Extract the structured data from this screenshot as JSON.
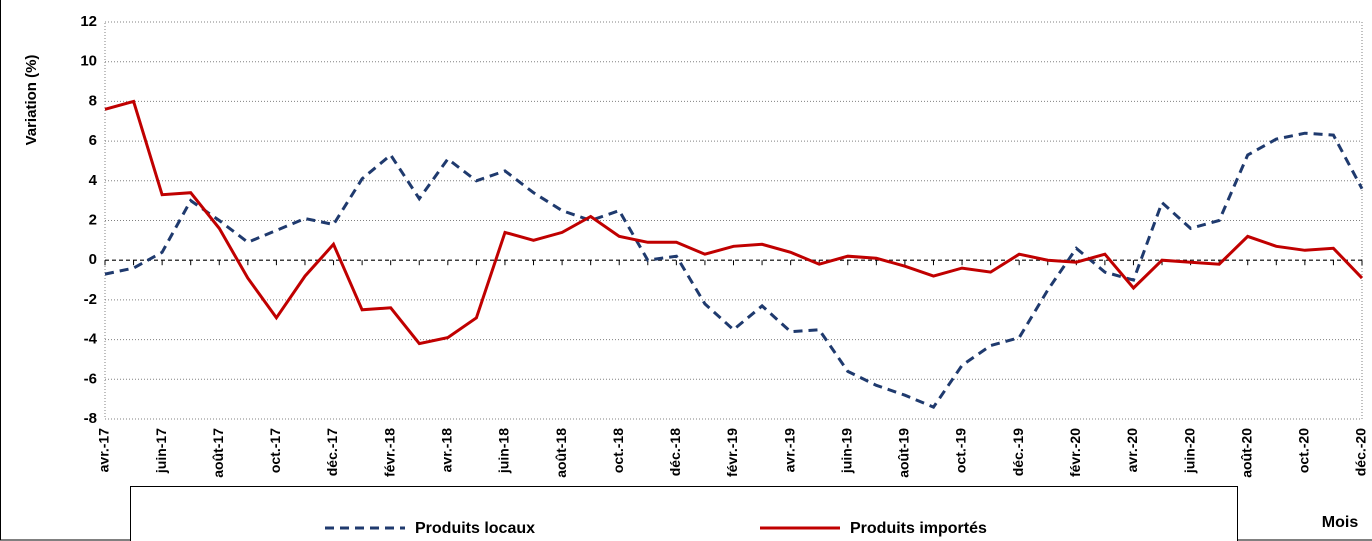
{
  "chart_data": {
    "type": "line",
    "y_label": "Variation (%)",
    "x_label": "Mois",
    "categories": [
      "avr.-17",
      null,
      "juin-17",
      null,
      "août-17",
      null,
      "oct.-17",
      null,
      "déc.-17",
      null,
      "févr.-18",
      null,
      "avr.-18",
      null,
      "juin-18",
      null,
      "août-18",
      null,
      "oct.-18",
      null,
      "déc.-18",
      null,
      "févr.-19",
      null,
      "avr.-19",
      null,
      "juin-19",
      null,
      "août-19",
      null,
      "oct.-19",
      null,
      "déc.-19",
      null,
      "févr.-20",
      null,
      "avr.-20",
      null,
      "juin-20",
      null,
      "août-20",
      null,
      "oct.-20",
      null,
      "déc.-20"
    ],
    "series": [
      {
        "name": "Produits locaux",
        "color": "#1f3a6e",
        "dash": true,
        "values": [
          -0.7,
          -0.4,
          0.4,
          3.0,
          2.0,
          0.9,
          1.5,
          2.1,
          1.8,
          4.1,
          5.3,
          3.1,
          5.1,
          4.0,
          4.5,
          3.4,
          2.5,
          2.0,
          2.5,
          0.0,
          0.2,
          -2.2,
          -3.5,
          -2.3,
          -3.6,
          -3.5,
          -5.6,
          -6.3,
          -6.8,
          -7.4,
          -5.3,
          -4.3,
          -3.9,
          -1.5,
          0.6,
          -0.6,
          -1.0,
          2.9,
          1.6,
          2.0,
          5.3,
          6.1,
          6.4,
          6.3,
          3.6
        ]
      },
      {
        "name": "Produits importés",
        "color": "#c00000",
        "dash": false,
        "values": [
          7.6,
          8.0,
          3.3,
          3.4,
          1.6,
          -0.9,
          -2.9,
          -0.8,
          0.8,
          -2.5,
          -2.4,
          -4.2,
          -3.9,
          -2.9,
          1.4,
          1.0,
          1.4,
          2.2,
          1.2,
          0.9,
          0.9,
          0.3,
          0.7,
          0.8,
          0.4,
          -0.2,
          0.2,
          0.1,
          -0.3,
          -0.8,
          -0.4,
          -0.6,
          0.3,
          0.0,
          -0.1,
          0.3,
          -1.4,
          0.0,
          -0.1,
          -0.2,
          1.2,
          0.7,
          0.5,
          0.6,
          -0.9
        ]
      }
    ],
    "ylim": [
      -8,
      12
    ],
    "yticks": [
      -8,
      -6,
      -4,
      -2,
      0,
      2,
      4,
      6,
      8,
      10,
      12
    ],
    "grid": true
  }
}
